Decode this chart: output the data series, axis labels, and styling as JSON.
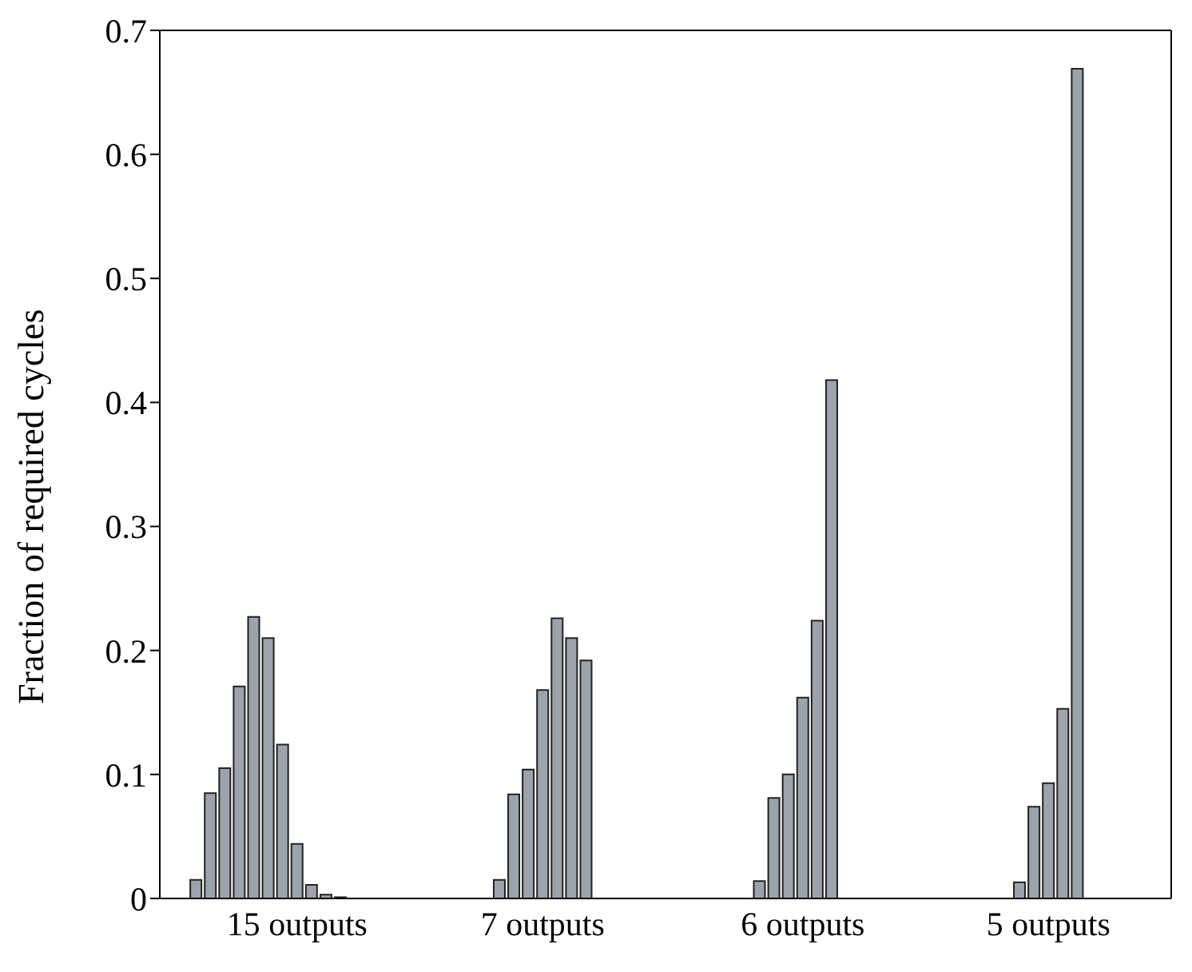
{
  "chart_data": {
    "type": "bar",
    "ylabel": "Fraction of required cycles",
    "categories": [
      null,
      null,
      null,
      null,
      null,
      null,
      null,
      null,
      null,
      "15 outputs",
      null,
      null,
      null,
      null,
      null,
      null,
      null,
      null,
      null,
      null,
      null,
      null,
      null,
      null,
      null,
      null,
      "7 outputs",
      null,
      null,
      null,
      null,
      null,
      null,
      null,
      null,
      null,
      null,
      null,
      null,
      null,
      null,
      null,
      null,
      null,
      "6 outputs",
      null,
      null,
      null,
      null,
      null,
      null,
      null,
      null,
      null,
      null,
      null,
      null,
      null,
      null,
      null,
      null,
      "5 outputs",
      null,
      null,
      null,
      null,
      null,
      null,
      null,
      null
    ],
    "values": [
      null,
      null,
      0.015,
      0.085,
      0.105,
      0.171,
      0.227,
      0.21,
      0.124,
      0.044,
      0.011,
      0.003,
      0.001,
      0,
      0,
      0,
      0,
      null,
      null,
      null,
      null,
      null,
      null,
      0.015,
      0.084,
      0.104,
      0.168,
      0.226,
      0.21,
      0.192,
      null,
      null,
      null,
      null,
      null,
      null,
      null,
      null,
      null,
      null,
      null,
      0.014,
      0.081,
      0.1,
      0.162,
      0.224,
      0.418,
      null,
      null,
      null,
      null,
      null,
      null,
      null,
      null,
      null,
      null,
      null,
      null,
      0.013,
      0.074,
      0.093,
      0.153,
      0.669,
      null,
      null,
      null,
      null,
      null,
      null
    ],
    "color": "#9da3ab",
    "ylim": [
      0,
      0.7
    ],
    "yticks": [
      0,
      0.1,
      0.2,
      0.3,
      0.4,
      0.5,
      0.6,
      0.7
    ]
  }
}
